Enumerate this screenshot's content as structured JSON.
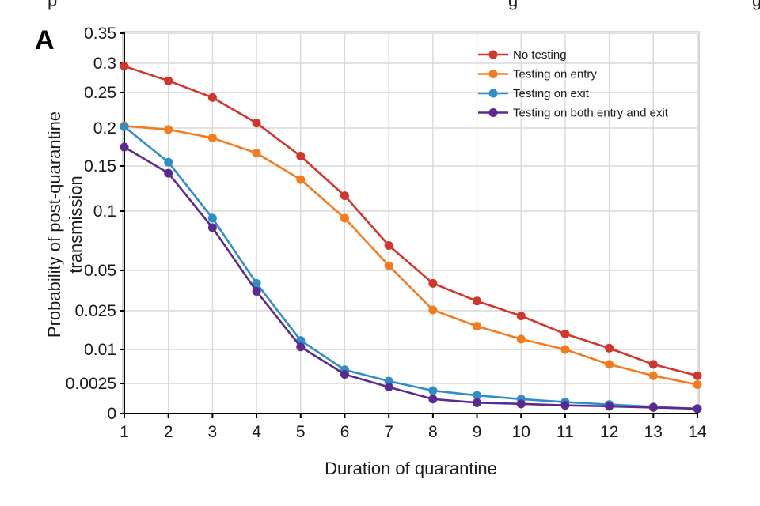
{
  "top_fragment": {
    "left_text": "p",
    "right_text": "g",
    "far_right_text": "g"
  },
  "panel_label": "A",
  "chart_data": {
    "type": "line",
    "title": "",
    "xlabel": "Duration of quarantine",
    "ylabel_line1": "Probability of post-quarantine",
    "ylabel_line2": "transmission",
    "x": [
      1,
      2,
      3,
      4,
      5,
      6,
      7,
      8,
      9,
      10,
      11,
      12,
      13,
      14
    ],
    "x_tick_labels": [
      "1",
      "2",
      "3",
      "4",
      "5",
      "6",
      "7",
      "8",
      "9",
      "10",
      "11",
      "12",
      "13",
      "14"
    ],
    "y_ticks": [
      {
        "value": 0,
        "label": "0"
      },
      {
        "value": 0.0025,
        "label": "0.0025"
      },
      {
        "value": 0.01,
        "label": "0.01"
      },
      {
        "value": 0.025,
        "label": "0.025"
      },
      {
        "value": 0.05,
        "label": "0.05"
      },
      {
        "value": 0.1,
        "label": "0.1"
      },
      {
        "value": 0.15,
        "label": "0.15"
      },
      {
        "value": 0.2,
        "label": "0.2"
      },
      {
        "value": 0.25,
        "label": "0.25"
      },
      {
        "value": 0.3,
        "label": "0.3"
      },
      {
        "value": 0.35,
        "label": "0.35"
      }
    ],
    "y_scale": "nonlinear (sqrt-like)",
    "grid": true,
    "legend_position": "top-right",
    "series": [
      {
        "name": "No testing",
        "color": "#d2352b",
        "values": [
          0.295,
          0.27,
          0.243,
          0.207,
          0.163,
          0.117,
          0.071,
          0.042,
          0.031,
          0.023,
          0.016,
          0.0105,
          0.0067,
          0.0042
        ]
      },
      {
        "name": "Testing on entry",
        "color": "#f47c20",
        "values": [
          0.203,
          0.198,
          0.187,
          0.167,
          0.135,
          0.094,
          0.054,
          0.0255,
          0.019,
          0.014,
          0.01,
          0.0067,
          0.0042,
          0.0024
        ]
      },
      {
        "name": "Testing on exit",
        "color": "#2e8ec8",
        "values": [
          0.202,
          0.155,
          0.094,
          0.042,
          0.0135,
          0.0055,
          0.003,
          0.0019,
          0.0015,
          0.0012,
          0.00095,
          0.00075,
          0.00055,
          0.0004
        ]
      },
      {
        "name": "Testing on both entry and exit",
        "color": "#5b2a91",
        "values": [
          0.175,
          0.142,
          0.086,
          0.037,
          0.011,
          0.0045,
          0.0022,
          0.0012,
          0.0009,
          0.0008,
          0.00068,
          0.0006,
          0.0005,
          0.0004
        ]
      }
    ]
  }
}
